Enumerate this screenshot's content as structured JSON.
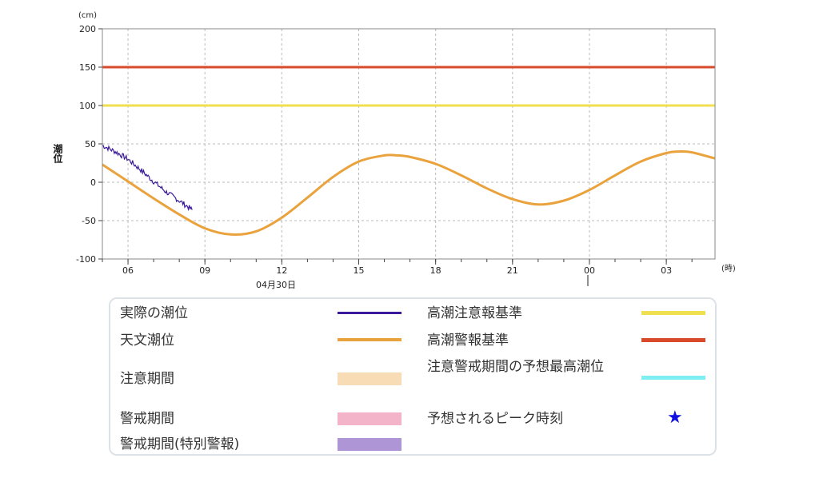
{
  "chart_data": {
    "type": "line",
    "y_unit": "(cm)",
    "x_unit": "(時)",
    "ylabel": "潮位",
    "date_label": "04月30日",
    "ylim": [
      -100,
      200
    ],
    "y_ticks": [
      "200",
      "150",
      "100",
      "50",
      "0",
      "-50",
      "-100"
    ],
    "y_tick_values": [
      200,
      150,
      100,
      50,
      0,
      -50,
      -100
    ],
    "x_tick_labels": [
      "06",
      "09",
      "12",
      "15",
      "18",
      "21",
      "00",
      "03"
    ],
    "x_tick_hours": [
      6,
      9,
      12,
      15,
      18,
      21,
      24,
      27
    ],
    "xlim_hours": [
      5.0,
      28.9
    ],
    "grid": true,
    "thresholds": [
      {
        "name": "高潮警報基準",
        "value": 150,
        "color": "#d94a2b"
      },
      {
        "name": "高潮注意報基準",
        "value": 100,
        "color": "#f0e050"
      }
    ],
    "series": [
      {
        "name": "天文潮位",
        "color": "#eaa23c",
        "x": [
          5,
          6,
          7,
          8,
          9,
          10,
          11,
          12,
          13,
          14,
          15,
          16,
          16.5,
          17,
          18,
          19,
          20,
          21,
          22,
          23,
          24,
          25,
          26,
          27,
          27.5,
          28,
          28.9
        ],
        "y": [
          23,
          1,
          -21,
          -42,
          -60,
          -68,
          -64,
          -46,
          -20,
          7,
          27,
          35,
          35,
          33,
          24,
          9,
          -8,
          -22,
          -29,
          -24,
          -10,
          9,
          27,
          38,
          40,
          39,
          31
        ]
      },
      {
        "name": "実際の潮位",
        "color": "#3a1a9a",
        "x": [
          5,
          5.5,
          6,
          6.5,
          7,
          7.5,
          8,
          8.5
        ],
        "y": [
          48,
          40,
          30,
          16,
          1,
          -13,
          -24,
          -36
        ]
      }
    ]
  },
  "legend": {
    "items": [
      {
        "label": "実際の潮位",
        "color": "#3a1a9a",
        "kind": "line"
      },
      {
        "label": "天文潮位",
        "color": "#eaa23c",
        "kind": "line"
      },
      {
        "label": "注意期間",
        "color": "#f7dcb6",
        "kind": "box"
      },
      {
        "label": "警戒期間",
        "color": "#f3b3c9",
        "kind": "box"
      },
      {
        "label": "警戒期間(特別警報)",
        "color": "#ae96d6",
        "kind": "box"
      },
      {
        "label": "高潮注意報基準",
        "color": "#f0e050",
        "kind": "line"
      },
      {
        "label": "高潮警報基準",
        "color": "#d94a2b",
        "kind": "line"
      },
      {
        "label": "注意警戒期間の予想最高潮位",
        "color": "#7eeef2",
        "kind": "line"
      },
      {
        "label": "予想されるピーク時刻",
        "color": "#1010e0",
        "kind": "star",
        "icon": "star-icon"
      }
    ]
  }
}
